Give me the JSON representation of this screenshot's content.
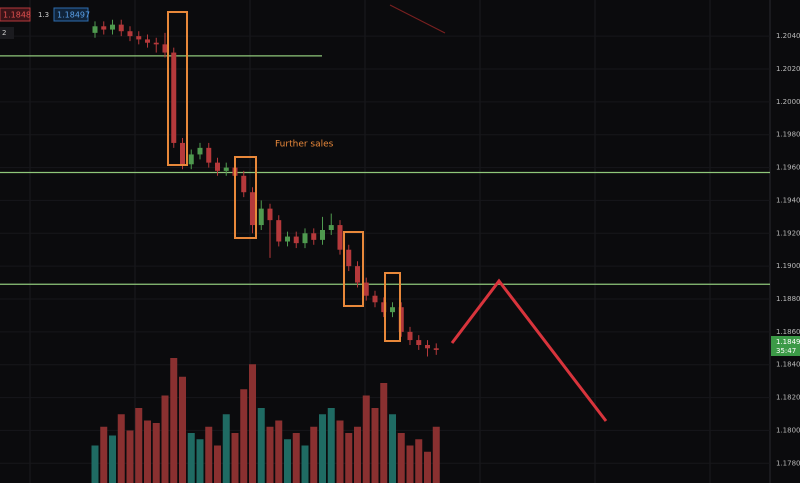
{
  "header": {
    "bid": "1.1848",
    "spread": "1.3",
    "ask": "1.18497",
    "count": "2"
  },
  "annotation": "Further sales",
  "price_tag": {
    "price": "1.1849",
    "timer": "35:47"
  },
  "price_axis": {
    "ylim": [
      1.1768,
      1.2062
    ],
    "ticks": [
      {
        "value": 1.204,
        "label": "1.20400"
      },
      {
        "value": 1.202,
        "label": "1.20200"
      },
      {
        "value": 1.2,
        "label": "1.20000"
      },
      {
        "value": 1.198,
        "label": "1.19800"
      },
      {
        "value": 1.196,
        "label": "1.19600"
      },
      {
        "value": 1.194,
        "label": "1.19400"
      },
      {
        "value": 1.192,
        "label": "1.19200"
      },
      {
        "value": 1.19,
        "label": "1.19000"
      },
      {
        "value": 1.188,
        "label": "1.18800"
      },
      {
        "value": 1.186,
        "label": "1.18600"
      },
      {
        "value": 1.184,
        "label": "1.18400"
      },
      {
        "value": 1.182,
        "label": "1.18200"
      },
      {
        "value": 1.18,
        "label": "1.18000"
      },
      {
        "value": 1.178,
        "label": "1.17800"
      }
    ]
  },
  "levels": [
    1.2028,
    1.1957,
    1.1889
  ],
  "up_color": "#4f9a4f",
  "down_color": "#b5393b",
  "vol_up_color": "#1f6b63",
  "vol_down_color": "#8a3030",
  "candles": {
    "open": [
      1.2042,
      1.2046,
      1.2044,
      1.2047,
      1.2043,
      1.204,
      1.2038,
      1.2036,
      1.2035,
      1.203,
      1.1975,
      1.1962,
      1.1968,
      1.1972,
      1.1963,
      1.1958,
      1.196,
      1.1955,
      1.1945,
      1.1925,
      1.1935,
      1.1928,
      1.1915,
      1.1918,
      1.1914,
      1.192,
      1.1916,
      1.1922,
      1.1925,
      1.191,
      1.19,
      1.189,
      1.1882,
      1.1878,
      1.1872,
      1.1875,
      1.186,
      1.1855,
      1.1852,
      1.185
    ],
    "high": [
      1.2049,
      1.2049,
      1.205,
      1.205,
      1.2046,
      1.2043,
      1.2041,
      1.2039,
      1.2042,
      1.2033,
      1.1978,
      1.1971,
      1.1975,
      1.1975,
      1.1966,
      1.1963,
      1.1963,
      1.1958,
      1.1948,
      1.194,
      1.1938,
      1.1931,
      1.1921,
      1.1921,
      1.1923,
      1.1923,
      1.193,
      1.1932,
      1.1928,
      1.1913,
      1.1903,
      1.1893,
      1.1885,
      1.1881,
      1.1878,
      1.1878,
      1.1863,
      1.1858,
      1.1855,
      1.1853
    ],
    "low": [
      1.2039,
      1.2041,
      1.2041,
      1.204,
      1.2037,
      1.2035,
      1.2033,
      1.203,
      1.2027,
      1.1972,
      1.1959,
      1.1959,
      1.1965,
      1.196,
      1.1955,
      1.1955,
      1.1952,
      1.1942,
      1.192,
      1.1922,
      1.1905,
      1.1912,
      1.1912,
      1.1911,
      1.1911,
      1.1913,
      1.1913,
      1.1919,
      1.1907,
      1.1897,
      1.1887,
      1.1879,
      1.1875,
      1.1869,
      1.1869,
      1.1857,
      1.1852,
      1.1849,
      1.1845,
      1.1846
    ],
    "close": [
      1.2046,
      1.2044,
      1.2047,
      1.2043,
      1.204,
      1.2038,
      1.2036,
      1.2035,
      1.203,
      1.1975,
      1.1962,
      1.1968,
      1.1972,
      1.1963,
      1.1958,
      1.196,
      1.1955,
      1.1945,
      1.1925,
      1.1935,
      1.1928,
      1.1915,
      1.1918,
      1.1914,
      1.192,
      1.1916,
      1.1922,
      1.1925,
      1.191,
      1.19,
      1.189,
      1.1882,
      1.1878,
      1.1872,
      1.1875,
      1.186,
      1.1855,
      1.1852,
      1.185,
      1.1849
    ],
    "volume": [
      30,
      45,
      38,
      55,
      42,
      60,
      50,
      48,
      70,
      100,
      85,
      40,
      35,
      45,
      30,
      55,
      40,
      75,
      95,
      60,
      45,
      50,
      35,
      40,
      30,
      45,
      55,
      60,
      50,
      40,
      45,
      70,
      60,
      80,
      55,
      40,
      30,
      35,
      25,
      45
    ]
  }
}
